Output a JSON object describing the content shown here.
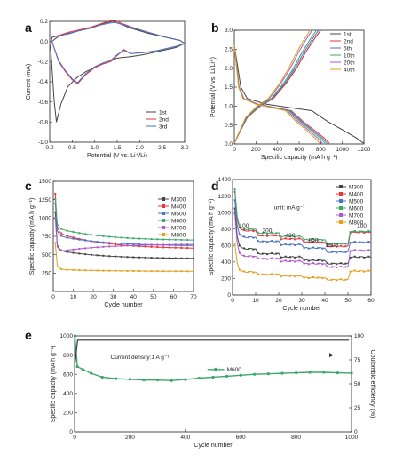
{
  "chart_data": [
    {
      "panel": "a",
      "type": "line",
      "xlabel": "Potential (V vs. Li⁺/Li)",
      "ylabel": "Current (mA)",
      "xlim": [
        0.0,
        3.0
      ],
      "ylim": [
        -1.0,
        0.2
      ],
      "xticks": [
        "0.0",
        "0.5",
        "1.0",
        "1.5",
        "2.0",
        "2.5",
        "3.0"
      ],
      "yticks": [
        "-1.0",
        "-0.8",
        "-0.6",
        "-0.4",
        "-0.2",
        "0.0",
        "0.2"
      ],
      "legend": "bottom-right",
      "series": [
        {
          "name": "1st",
          "color": "#444444",
          "x": [
            0.02,
            0.1,
            0.15,
            0.25,
            0.4,
            0.6,
            0.8,
            1.0,
            1.2,
            1.35,
            1.45,
            1.6,
            1.8,
            2.1,
            2.4,
            2.8,
            3.0,
            2.9,
            2.6,
            2.2,
            1.9,
            1.75,
            1.6,
            1.4,
            1.2,
            1.0,
            0.75,
            0.6,
            0.45,
            0.35,
            0.2,
            0.12,
            0.05,
            0.02
          ],
          "y": [
            -0.05,
            -0.6,
            -0.8,
            -0.62,
            -0.45,
            -0.36,
            -0.3,
            -0.26,
            -0.22,
            -0.2,
            -0.17,
            -0.16,
            -0.15,
            -0.13,
            -0.1,
            -0.06,
            -0.02,
            0.01,
            0.04,
            0.08,
            0.12,
            0.14,
            0.17,
            0.2,
            0.18,
            0.15,
            0.12,
            0.1,
            0.08,
            0.07,
            0.06,
            0.05,
            0.04,
            -0.05
          ]
        },
        {
          "name": "2nd",
          "color": "#e8343a",
          "x": [
            0.05,
            0.2,
            0.35,
            0.5,
            0.62,
            0.8,
            1.0,
            1.2,
            1.35,
            1.5,
            1.65,
            1.8,
            2.1,
            2.4,
            2.8,
            3.0,
            2.9,
            2.6,
            2.2,
            1.9,
            1.6,
            1.45,
            1.3,
            1.1,
            0.9,
            0.6,
            0.4,
            0.2,
            0.05
          ],
          "y": [
            0.0,
            -0.2,
            -0.3,
            -0.38,
            -0.42,
            -0.33,
            -0.26,
            -0.22,
            -0.2,
            -0.14,
            -0.08,
            -0.12,
            -0.11,
            -0.09,
            -0.05,
            -0.02,
            0.01,
            0.04,
            0.09,
            0.13,
            0.18,
            0.21,
            0.2,
            0.17,
            0.14,
            0.11,
            0.09,
            0.06,
            0.0
          ]
        },
        {
          "name": "3rd",
          "color": "#4a73c8",
          "x": [
            0.05,
            0.2,
            0.35,
            0.5,
            0.62,
            0.8,
            1.0,
            1.2,
            1.35,
            1.5,
            1.65,
            1.8,
            2.1,
            2.4,
            2.8,
            3.0,
            2.9,
            2.6,
            2.2,
            1.9,
            1.6,
            1.45,
            1.3,
            1.1,
            0.9,
            0.6,
            0.4,
            0.2,
            0.05
          ],
          "y": [
            0.0,
            -0.19,
            -0.29,
            -0.37,
            -0.41,
            -0.32,
            -0.25,
            -0.21,
            -0.19,
            -0.13,
            -0.09,
            -0.12,
            -0.11,
            -0.09,
            -0.05,
            -0.02,
            0.01,
            0.04,
            0.09,
            0.13,
            0.17,
            0.19,
            0.18,
            0.16,
            0.13,
            0.1,
            0.08,
            0.05,
            0.0
          ]
        }
      ]
    },
    {
      "panel": "b",
      "type": "line",
      "xlabel": "Specific capacity (mA h g⁻¹)",
      "ylabel": "Potential (V vs. Li/Li⁺)",
      "xlim": [
        0,
        1200
      ],
      "ylim": [
        0.0,
        3.0
      ],
      "xticks": [
        "0",
        "200",
        "400",
        "600",
        "800",
        "1000",
        "1200"
      ],
      "yticks": [
        "0.0",
        "0.5",
        "1.0",
        "1.5",
        "2.0",
        "2.5",
        "3.0"
      ],
      "legend": "top-right",
      "series": [
        {
          "name": "1st",
          "color": "#444444",
          "dis_end": 1195,
          "chg_end": 800
        },
        {
          "name": "2nd",
          "color": "#e8343a",
          "dis_end": 880,
          "chg_end": 800
        },
        {
          "name": "5th",
          "color": "#4a73c8",
          "dis_end": 860,
          "chg_end": 780
        },
        {
          "name": "10th",
          "color": "#3aa86a",
          "dis_end": 840,
          "chg_end": 760
        },
        {
          "name": "20th",
          "color": "#b05ac8",
          "dis_end": 815,
          "chg_end": 720
        },
        {
          "name": "40th",
          "color": "#e0a020",
          "dis_end": 790,
          "chg_end": 700
        }
      ]
    },
    {
      "panel": "c",
      "type": "line",
      "xlabel": "Cycle number",
      "ylabel": "Specific capacity (mA h g⁻¹)",
      "xlim": [
        0,
        70
      ],
      "ylim": [
        0,
        1500
      ],
      "xticks": [
        "0",
        "10",
        "20",
        "30",
        "40",
        "50",
        "60",
        "70"
      ],
      "yticks": [
        "250",
        "500",
        "750",
        "1000",
        "1250",
        "1500"
      ],
      "legend": "top-right",
      "series": [
        {
          "name": "M300",
          "color": "#444444",
          "first": 1080,
          "start": 560,
          "end": 450
        },
        {
          "name": "M400",
          "color": "#e8343a",
          "first": 1330,
          "start": 800,
          "end": 590
        },
        {
          "name": "M500",
          "color": "#4a73c8",
          "first": 1200,
          "start": 760,
          "end": 625
        },
        {
          "name": "M600",
          "color": "#3aa86a",
          "first": 1260,
          "start": 860,
          "end": 700
        },
        {
          "name": "M700",
          "color": "#b05ac8",
          "first": 1000,
          "start": 540,
          "end": 640
        },
        {
          "name": "M800",
          "color": "#e0a020",
          "first": 660,
          "start": 300,
          "end": 275
        }
      ]
    },
    {
      "panel": "d",
      "type": "line",
      "xlabel": "Cycle number",
      "ylabel": "Specific capacity (mA h g⁻¹)",
      "xlim": [
        0,
        60
      ],
      "ylim": [
        0,
        1400
      ],
      "xticks": [
        "0",
        "10",
        "20",
        "30",
        "40",
        "50",
        "60"
      ],
      "yticks": [
        "0",
        "200",
        "400",
        "600",
        "800",
        "1000",
        "1200",
        "1400"
      ],
      "unit_label": "unit: mA g⁻¹",
      "rate_labels": [
        {
          "text": "100",
          "x": 5,
          "y": 820
        },
        {
          "text": "200",
          "x": 15,
          "y": 760
        },
        {
          "text": "400",
          "x": 25,
          "y": 700
        },
        {
          "text": "800",
          "x": 35,
          "y": 640
        },
        {
          "text": "1600",
          "x": 43,
          "y": 580
        },
        {
          "text": "100",
          "x": 56,
          "y": 820
        }
      ],
      "legend": "top-right",
      "series": [
        {
          "name": "M300",
          "color": "#444444",
          "first": 1050,
          "levels": [
            560,
            500,
            460,
            420,
            380,
            460
          ]
        },
        {
          "name": "M400",
          "color": "#e8343a",
          "first": 1250,
          "levels": [
            780,
            720,
            680,
            640,
            590,
            760
          ]
        },
        {
          "name": "M500",
          "color": "#4a73c8",
          "first": 1150,
          "levels": [
            700,
            650,
            610,
            570,
            520,
            640
          ]
        },
        {
          "name": "M600",
          "color": "#3aa86a",
          "first": 1280,
          "levels": [
            800,
            750,
            710,
            670,
            620,
            770
          ]
        },
        {
          "name": "M700",
          "color": "#b05ac8",
          "first": 980,
          "levels": [
            470,
            440,
            410,
            380,
            340,
            540
          ]
        },
        {
          "name": "M800",
          "color": "#e0a020",
          "first": 620,
          "levels": [
            280,
            250,
            230,
            210,
            185,
            290
          ]
        }
      ]
    },
    {
      "panel": "e",
      "type": "line",
      "xlabel": "Cycle number",
      "ylabel": "Specific capacity (mA h g⁻¹)",
      "y2label": "Coulombic efficiency (%)",
      "xlim": [
        0,
        1000
      ],
      "ylim": [
        0,
        1000
      ],
      "y2lim": [
        0,
        100
      ],
      "xticks": [
        "0",
        "200",
        "400",
        "600",
        "800",
        "1000"
      ],
      "yticks": [
        "0",
        "200",
        "400",
        "600",
        "800",
        "1000"
      ],
      "y2ticks": [
        "0",
        "25",
        "50",
        "75",
        "100"
      ],
      "annotation": "Current density:1 A g⁻¹",
      "legend": "upper-middle",
      "series": [
        {
          "name": "M600",
          "color": "#3aa86a",
          "x": [
            1,
            10,
            30,
            60,
            100,
            150,
            200,
            250,
            300,
            350,
            400,
            450,
            500,
            550,
            600,
            650,
            700,
            750,
            800,
            850,
            900,
            950,
            1000
          ],
          "y": [
            1000,
            680,
            650,
            610,
            570,
            555,
            548,
            540,
            540,
            535,
            545,
            560,
            570,
            580,
            590,
            600,
            605,
            610,
            615,
            620,
            620,
            615,
            612
          ]
        },
        {
          "name": "Coulombic efficiency",
          "color": "#333333",
          "axis": "right",
          "value": 95
        }
      ]
    }
  ],
  "panel_labels": [
    "a",
    "b",
    "c",
    "d",
    "e"
  ]
}
